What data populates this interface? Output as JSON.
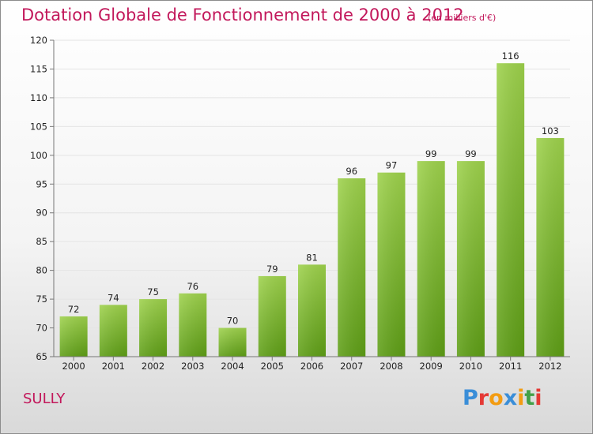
{
  "header": {
    "title": "Dotation Globale de Fonctionnement de 2000 à 2012",
    "subtitle": "(en milliers d'€)"
  },
  "commune": "SULLY",
  "logo": {
    "text": "Proxiti",
    "letters": [
      "P",
      "r",
      "o",
      "x",
      "i",
      "t",
      "i"
    ],
    "colors": [
      "#3a8ed8",
      "#e53935",
      "#f39c12",
      "#3a8ed8",
      "#f39c12",
      "#43a047",
      "#e53935"
    ]
  },
  "colors": {
    "bar_top": "#9ed24c",
    "bar_bottom": "#5e9e16",
    "grid": "#e4e4e4",
    "axis": "#777777",
    "title": "#c2185b"
  },
  "chart_data": {
    "type": "bar",
    "title": "Dotation Globale de Fonctionnement de 2000 à 2012",
    "subtitle": "(en milliers d'€)",
    "xlabel": "",
    "ylabel": "",
    "categories": [
      "2000",
      "2001",
      "2002",
      "2003",
      "2004",
      "2005",
      "2006",
      "2007",
      "2008",
      "2009",
      "2010",
      "2011",
      "2012"
    ],
    "values": [
      72,
      74,
      75,
      76,
      70,
      79,
      81,
      96,
      97,
      99,
      99,
      116,
      103
    ],
    "ylim": [
      65,
      120
    ],
    "yticks": [
      65,
      70,
      75,
      80,
      85,
      90,
      95,
      100,
      105,
      110,
      115,
      120
    ],
    "grid": true
  }
}
